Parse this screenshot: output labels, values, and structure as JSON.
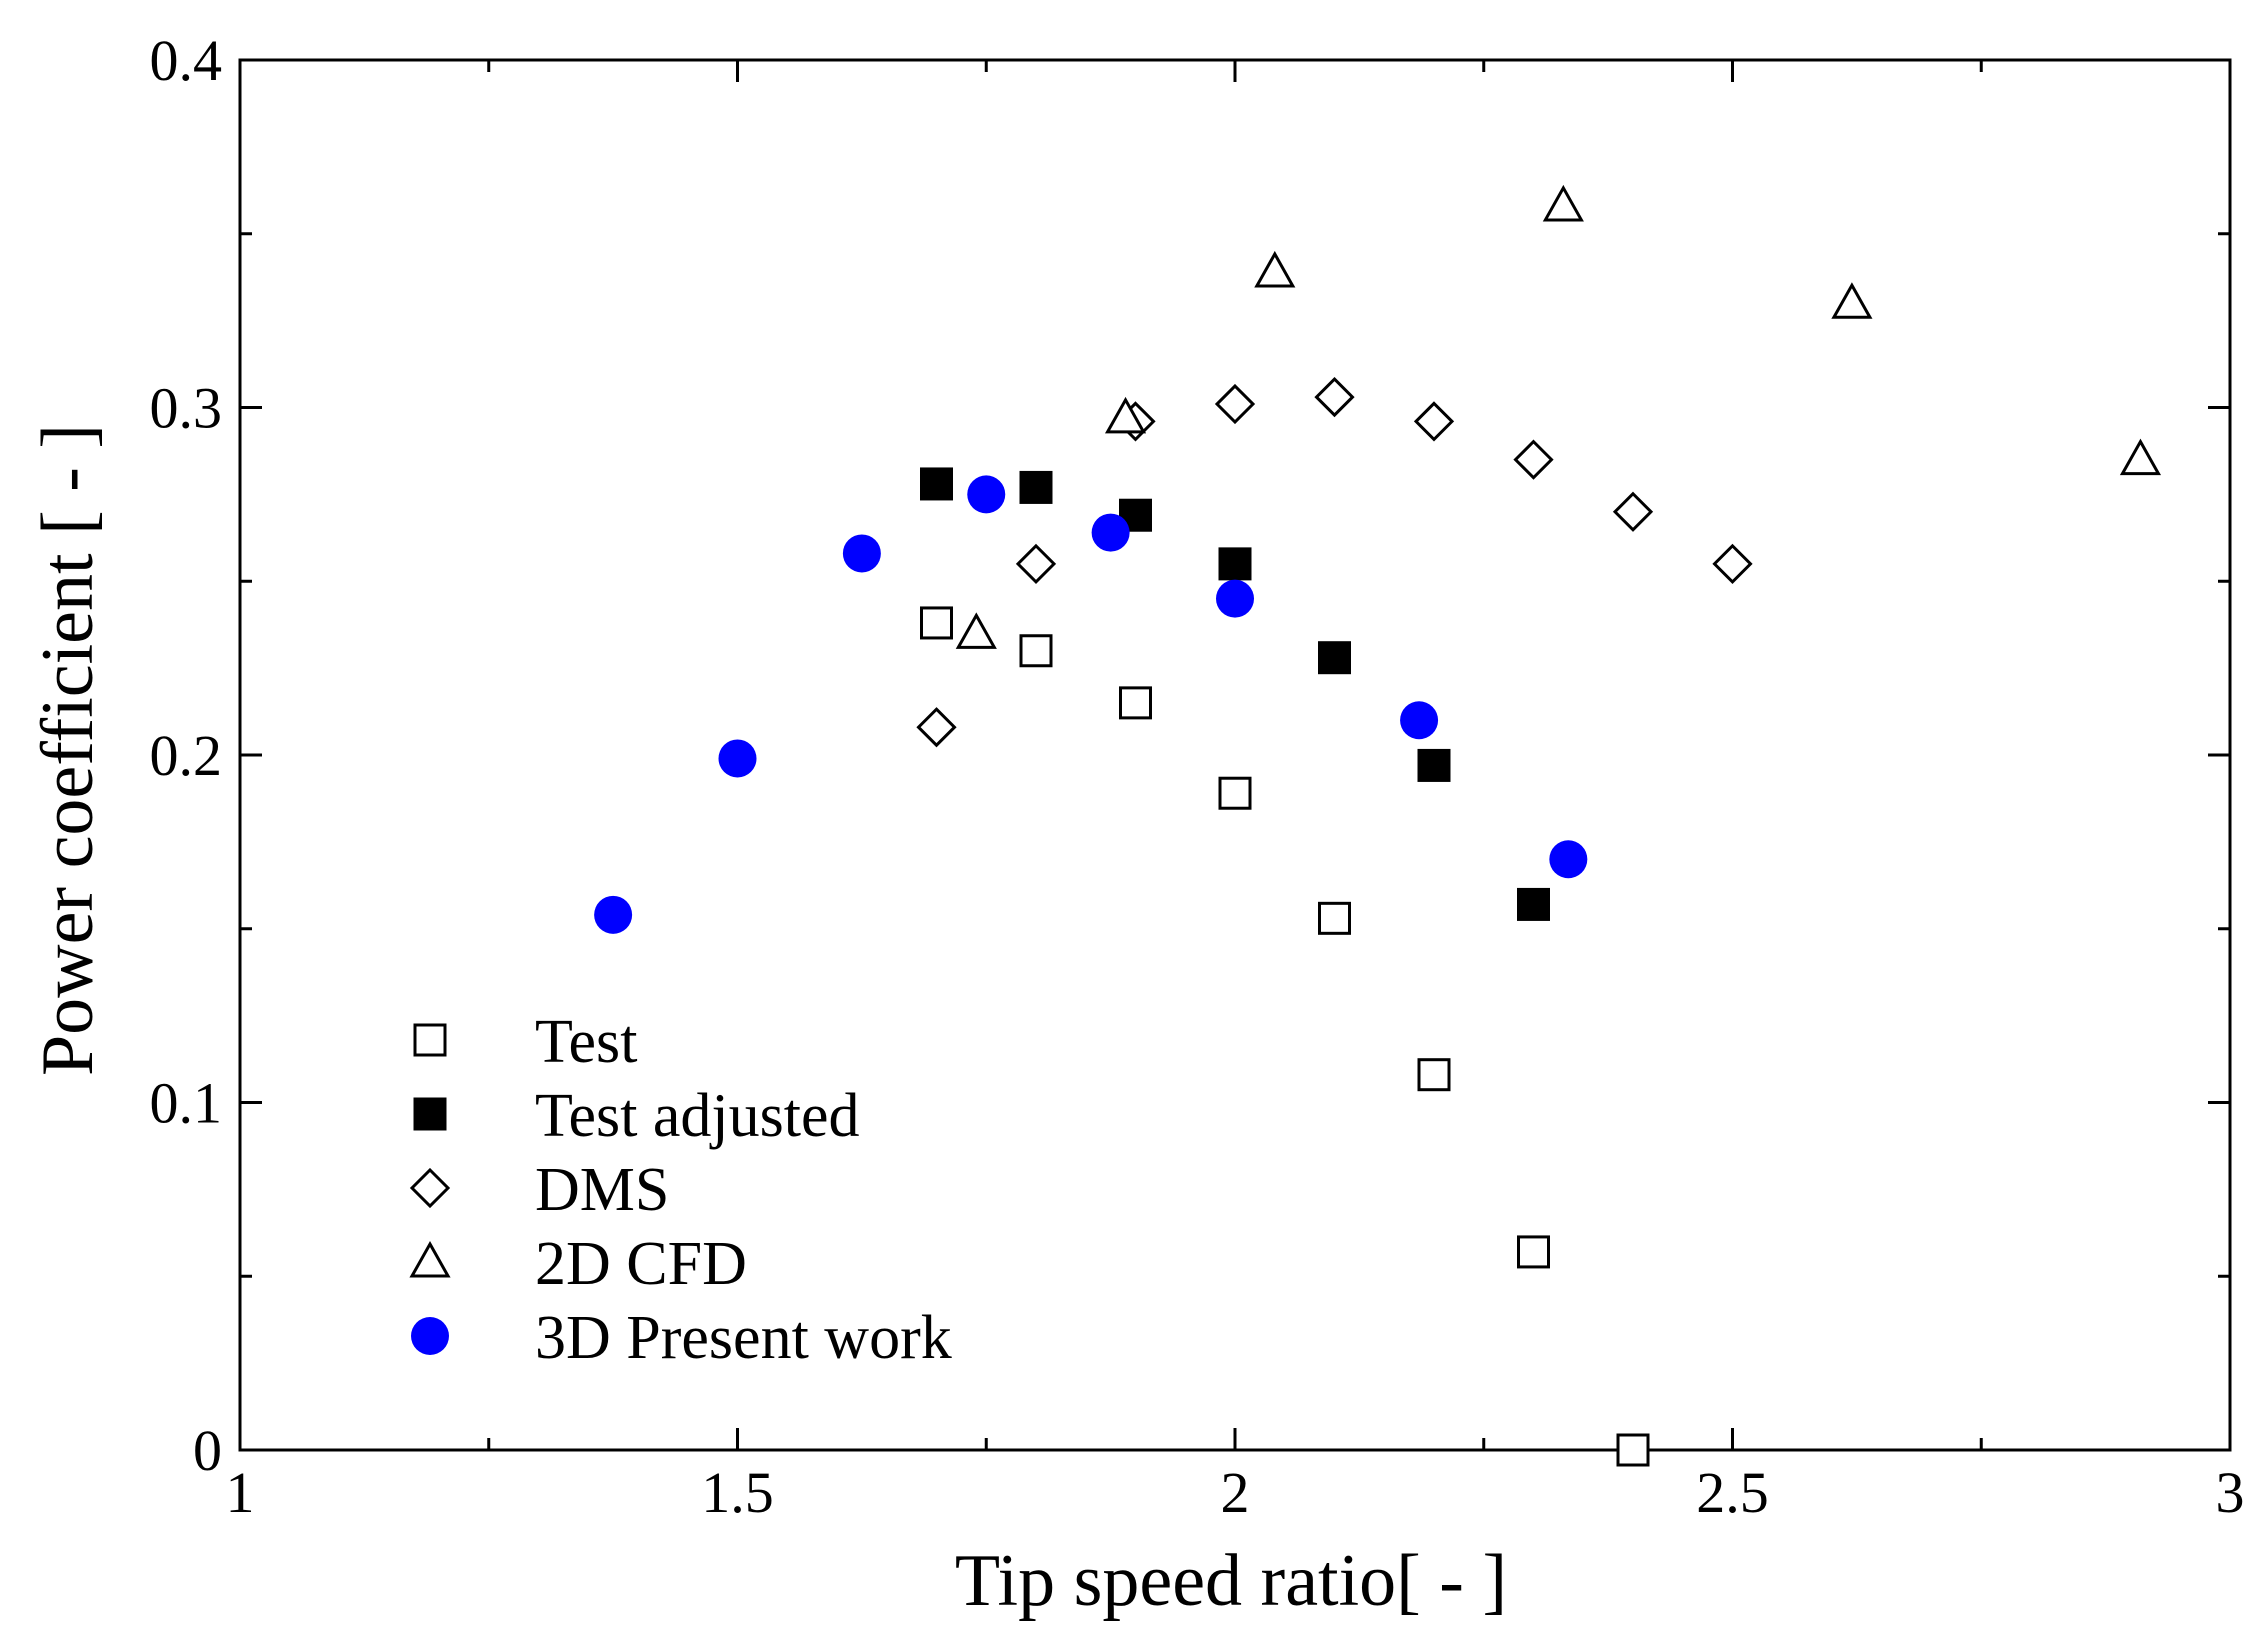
{
  "chart_data": {
    "type": "scatter",
    "title": "",
    "xlabel": "Tip speed ratio[ - ]",
    "ylabel": "Power coefficient [ - ]",
    "xlim": [
      1,
      3
    ],
    "ylim": [
      0,
      0.4
    ],
    "x_ticks": [
      1,
      1.5,
      2,
      2.5,
      3
    ],
    "x_tick_labels": [
      "1",
      "1.5",
      "2",
      "2.5",
      "3"
    ],
    "x_minor_ticks": [
      1.25,
      1.75,
      2.25,
      2.75
    ],
    "y_ticks": [
      0,
      0.1,
      0.2,
      0.3,
      0.4
    ],
    "y_tick_labels": [
      "0",
      "0.1",
      "0.2",
      "0.3",
      "0.4"
    ],
    "y_minor_ticks": [
      0.05,
      0.15,
      0.25,
      0.35
    ],
    "grid": false,
    "legend_position": "lower-left",
    "series": [
      {
        "name": "Test",
        "marker": "square-open",
        "color": "#000000",
        "x": [
          1.7,
          1.8,
          1.9,
          2.0,
          2.1,
          2.2,
          2.3,
          2.4
        ],
        "y": [
          0.238,
          0.23,
          0.215,
          0.189,
          0.153,
          0.108,
          0.057,
          0.0
        ]
      },
      {
        "name": "Test adjusted",
        "marker": "square-filled",
        "color": "#000000",
        "x": [
          1.7,
          1.8,
          1.9,
          2.0,
          2.1,
          2.2,
          2.3
        ],
        "y": [
          0.278,
          0.277,
          0.269,
          0.255,
          0.228,
          0.197,
          0.157
        ]
      },
      {
        "name": "DMS",
        "marker": "diamond-open",
        "color": "#000000",
        "x": [
          1.7,
          1.8,
          1.9,
          2.0,
          2.1,
          2.2,
          2.3,
          2.4,
          2.5
        ],
        "y": [
          0.208,
          0.255,
          0.296,
          0.301,
          0.303,
          0.296,
          0.285,
          0.27,
          0.255
        ]
      },
      {
        "name": "2D CFD",
        "marker": "triangle-open",
        "color": "#000000",
        "x": [
          1.74,
          1.89,
          2.04,
          2.33,
          2.62,
          2.91
        ],
        "y": [
          0.235,
          0.297,
          0.339,
          0.358,
          0.33,
          0.285
        ]
      },
      {
        "name": "3D Present work",
        "marker": "circle-filled",
        "color": "#0000ff",
        "x": [
          1.375,
          1.5,
          1.625,
          1.75,
          1.875,
          2.0,
          2.185,
          2.335
        ],
        "y": [
          0.154,
          0.199,
          0.258,
          0.275,
          0.264,
          0.245,
          0.21,
          0.17
        ]
      }
    ]
  }
}
